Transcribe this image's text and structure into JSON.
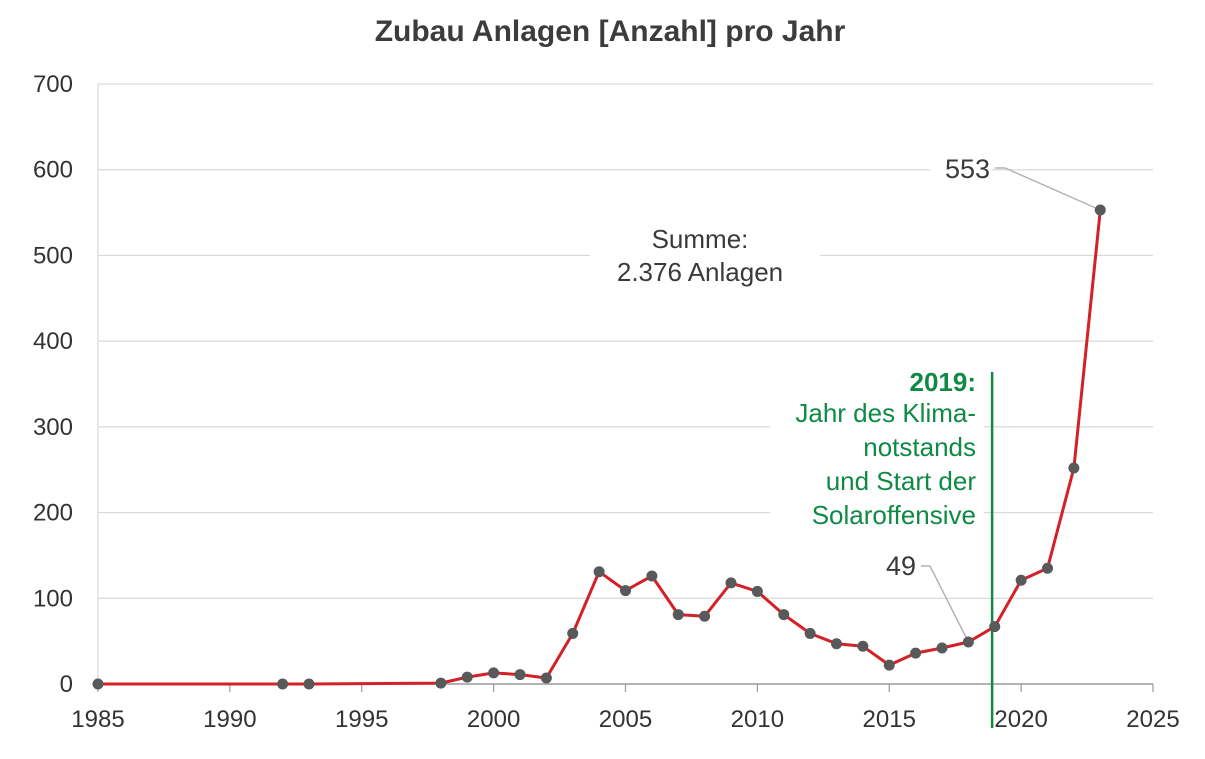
{
  "chart_data": {
    "type": "line",
    "title": "Zubau Anlagen [Anzahl] pro Jahr",
    "xlabel": "",
    "ylabel": "",
    "xlim": [
      1985,
      2025
    ],
    "ylim": [
      0,
      700
    ],
    "x_ticks": [
      "1985",
      "1990",
      "1995",
      "2000",
      "2005",
      "2010",
      "2015",
      "2020",
      "2025"
    ],
    "y_ticks": [
      "0",
      "100",
      "200",
      "300",
      "400",
      "500",
      "600",
      "700"
    ],
    "grid": true,
    "line_color": "#d42027",
    "marker_color": "#58595b",
    "series": [
      {
        "x": [
          1985,
          1992,
          1993,
          1998,
          1999,
          2000,
          2001,
          2002,
          2003,
          2004,
          2005,
          2006,
          2007,
          2008,
          2009,
          2010,
          2011,
          2012,
          2013,
          2014,
          2015,
          2016,
          2017,
          2018,
          2019,
          2020,
          2021,
          2022,
          2023
        ],
        "values": [
          0,
          0,
          0,
          1,
          8,
          13,
          11,
          7,
          59,
          131,
          109,
          126,
          81,
          79,
          118,
          108,
          81,
          59,
          47,
          44,
          22,
          36,
          42,
          49,
          67,
          121,
          135,
          252,
          553
        ]
      }
    ],
    "annotations": {
      "summe_line1": "Summe:",
      "summe_line2": "2.376 Anlagen",
      "label_max": "553",
      "label_2018": "49",
      "marker_year": 2018.9,
      "marker_color": "#0f8a45",
      "marker_title": "2019:",
      "marker_text": [
        "Jahr des Klima-",
        "notstands",
        "und Start der",
        "Solaroffensive"
      ]
    }
  }
}
